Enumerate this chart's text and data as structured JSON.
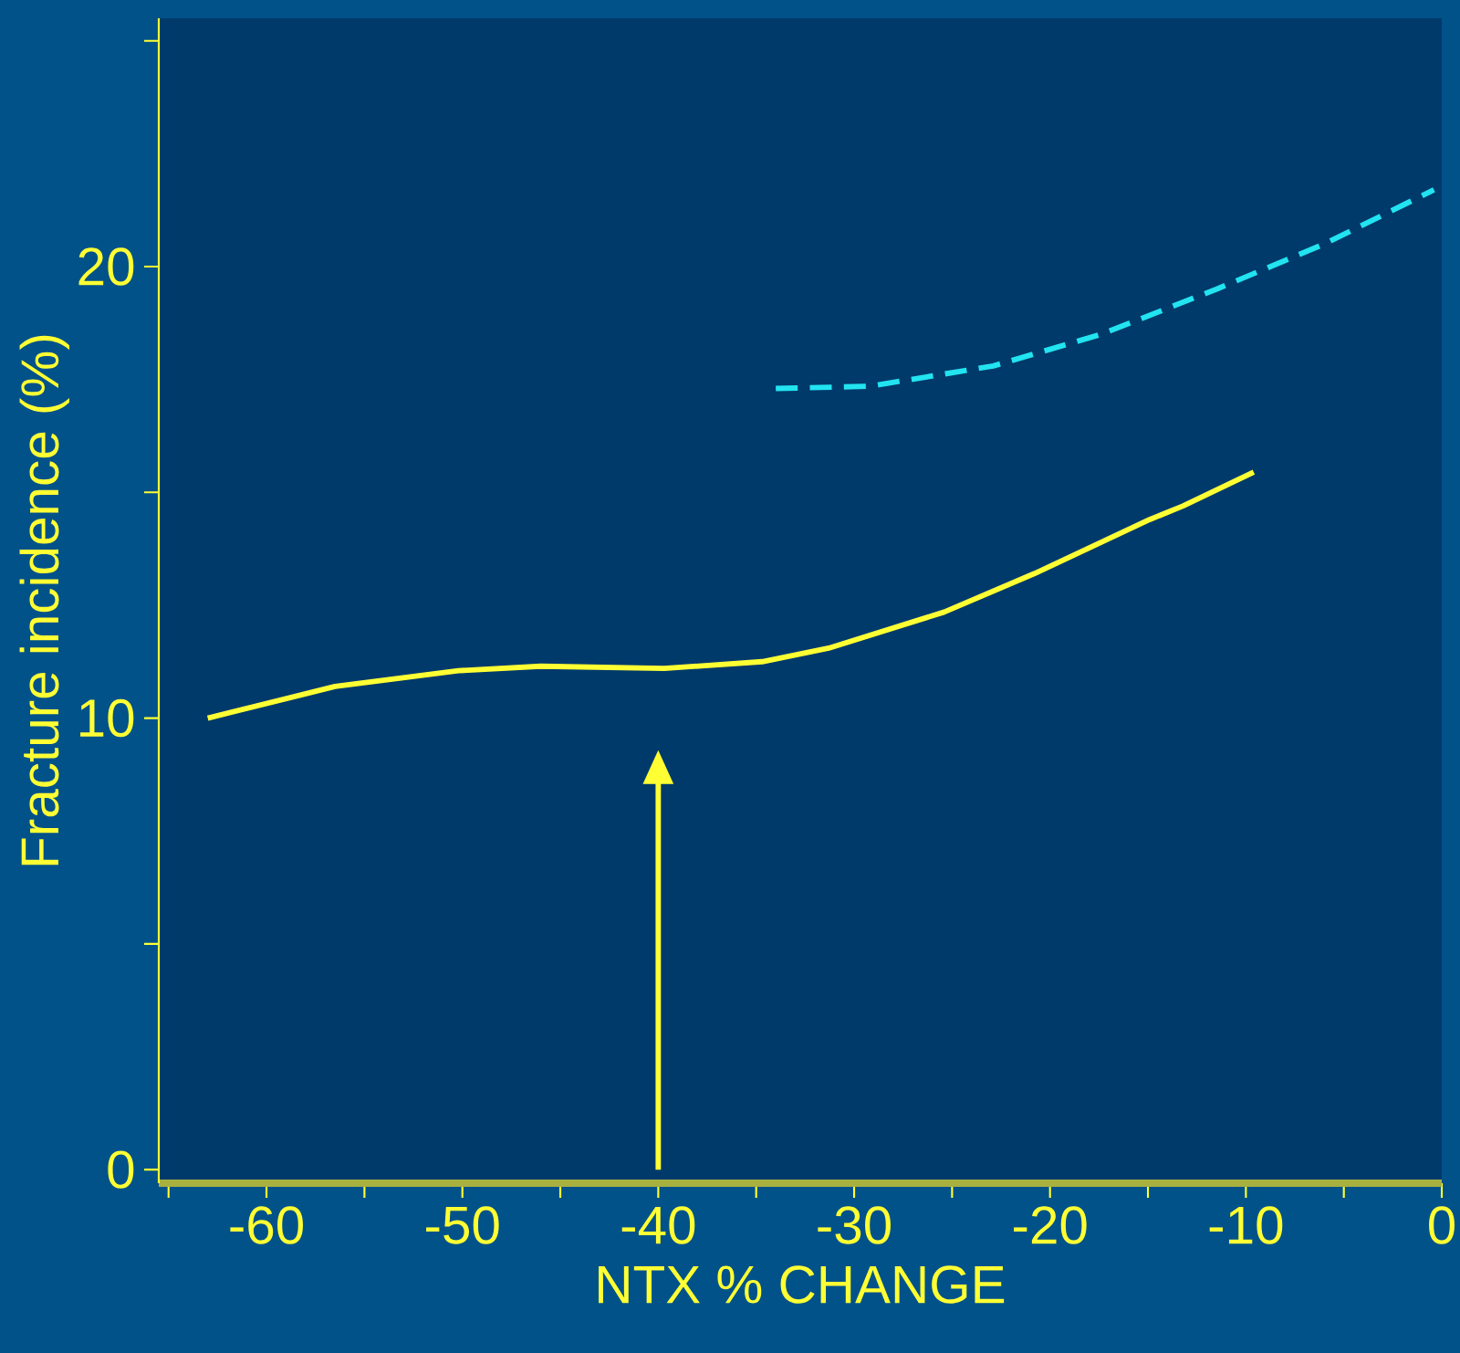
{
  "chart_data": {
    "type": "line",
    "xlabel": "NTX % CHANGE",
    "ylabel": "Fracture incidence (%)",
    "series": [
      {
        "color": "#ffff33",
        "line_style": "solid",
        "x": [
          -63,
          -56.5,
          -50.2,
          -46,
          -39.7,
          -34.7,
          -31.3,
          -25.4,
          -20.8,
          -14.9,
          -13.2,
          -9.6
        ],
        "values": [
          10.0,
          10.7,
          11.05,
          11.15,
          11.1,
          11.25,
          11.55,
          12.35,
          13.2,
          14.4,
          14.7,
          15.45
        ]
      },
      {
        "color": "#22e4f0",
        "line_style": "dashed",
        "x": [
          -34,
          -29.2,
          -22.9,
          -17.4,
          -11.5,
          -6,
          -0.4
        ],
        "values": [
          17.3,
          17.35,
          17.8,
          18.5,
          19.5,
          20.5,
          21.7
        ]
      }
    ],
    "xlim": [
      -65.5,
      0
    ],
    "ylim": [
      -0.3,
      25.5
    ],
    "xticks": [
      {
        "value": -65,
        "label": null
      },
      -60,
      {
        "value": -55,
        "label": null
      },
      -50,
      {
        "value": -45,
        "label": null
      },
      -40,
      {
        "value": -35,
        "label": null
      },
      -30,
      {
        "value": -25,
        "label": null
      },
      -20,
      {
        "value": -15,
        "label": null
      },
      -10,
      {
        "value": -5,
        "label": null
      },
      0
    ],
    "yticks": [
      0,
      {
        "value": 5,
        "label": null
      },
      10,
      {
        "value": 15,
        "label": null
      },
      20,
      {
        "value": 25,
        "label": null
      }
    ]
  }
}
